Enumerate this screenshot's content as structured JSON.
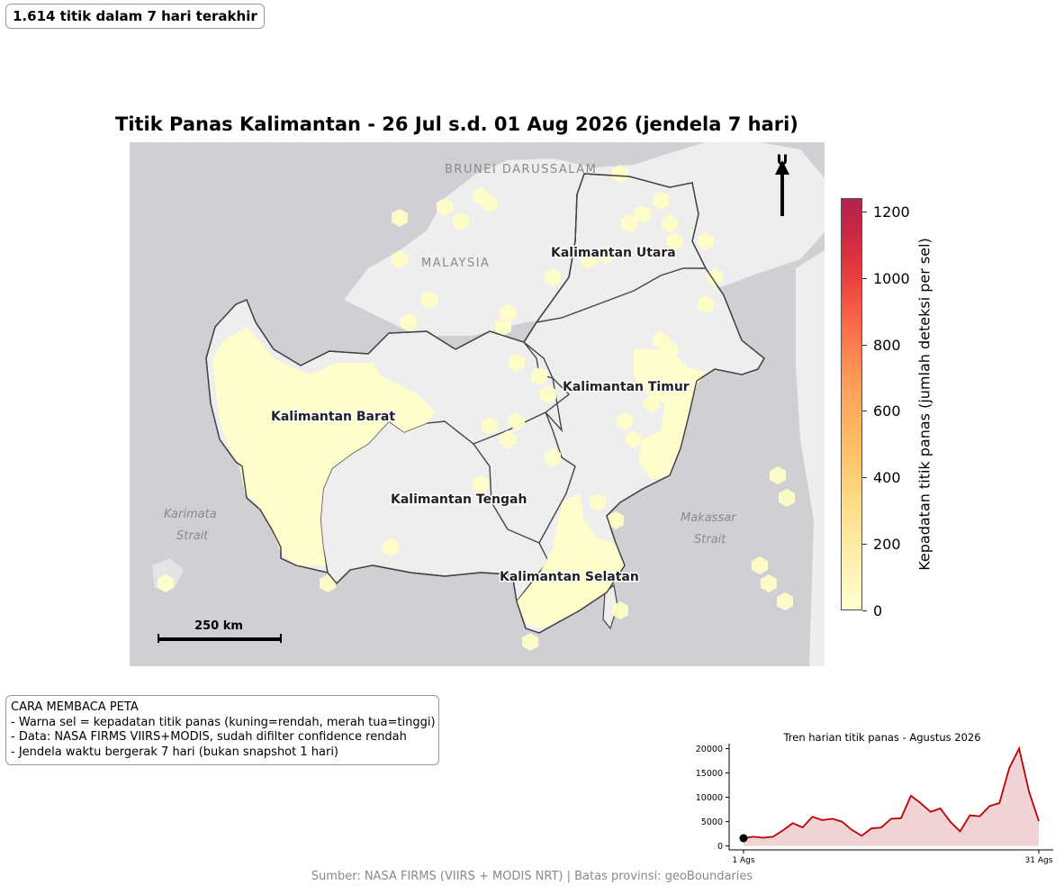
{
  "badge_text": "1.614 titik dalam 7 hari terakhir",
  "title": "Titik Panas Kalimantan - 26 Jul s.d. 01 Aug 2026 (jendela 7 hari)",
  "map": {
    "north_label": "U",
    "scale_label": "250 km",
    "basemap_labels": {
      "brunei": "BRUNEI DARUSSALAM",
      "malaysia": "MALAYSIA",
      "karimata_1": "Karimata",
      "karimata_2": "Strait",
      "makassar_1": "Makassar",
      "makassar_2": "Strait"
    },
    "provinces": {
      "utara": "Kalimantan Utara",
      "timur": "Kalimantan Timur",
      "barat": "Kalimantan Barat",
      "tengah": "Kalimantan Tengah",
      "selatan": "Kalimantan Selatan"
    },
    "colors": {
      "water": "#d0d0d4",
      "land": "#eeeeee",
      "border": "#444444",
      "hex_low": "#fffdc8"
    }
  },
  "colorbar": {
    "label": "Kepadatan titik panas (jumlah deteksi per sel)",
    "ticks": [
      "0",
      "200",
      "400",
      "600",
      "800",
      "1000",
      "1200"
    ],
    "range": [
      0,
      1240
    ],
    "colormap": "YlOrRd"
  },
  "howto": {
    "heading": "CARA MEMBACA PETA",
    "lines": [
      "- Warna sel = kepadatan titik panas (kuning=rendah, merah tua=tinggi)",
      "- Data: NASA FIRMS VIIRS+MODIS, sudah difilter confidence rendah",
      "- Jendela waktu bergerak 7 hari (bukan snapshot 1 hari)"
    ]
  },
  "source": "Sumber: NASA FIRMS (VIIRS + MODIS NRT) | Batas provinsi: geoBoundaries",
  "chart_data": {
    "type": "area",
    "title": "Tren harian titik panas - Agustus 2026",
    "x": [
      1,
      2,
      3,
      4,
      5,
      6,
      7,
      8,
      9,
      10,
      11,
      12,
      13,
      14,
      15,
      16,
      17,
      18,
      19,
      20,
      21,
      22,
      23,
      24,
      25,
      26,
      27,
      28,
      29,
      30,
      31
    ],
    "values": [
      1600,
      1900,
      1700,
      1900,
      3200,
      4700,
      3800,
      6000,
      5300,
      5600,
      5000,
      3300,
      2100,
      3600,
      3800,
      5600,
      5700,
      10300,
      8800,
      7000,
      7700,
      5000,
      3000,
      6300,
      6100,
      8200,
      8800,
      16000,
      20000,
      11200,
      5100
    ],
    "ylim": [
      -800,
      21000
    ],
    "yticks": [
      "0",
      "5000",
      "10000",
      "15000",
      "20000"
    ],
    "xticks": [
      "1 Ags",
      "31 Ags"
    ],
    "line_color": "#bb0000",
    "fill_color": "#f0cdd0",
    "highlight_day": 1
  }
}
